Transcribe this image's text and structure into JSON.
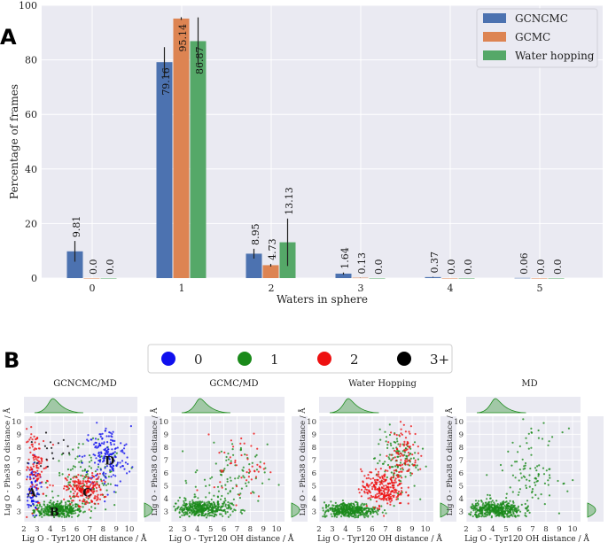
{
  "panel_a_label": "A",
  "panel_b_label": "B",
  "chart_data": [
    {
      "type": "bar",
      "xlabel": "Waters in sphere",
      "ylabel": "Percentage of frames",
      "ylim": [
        0,
        100
      ],
      "yticks": [
        0,
        20,
        40,
        60,
        80,
        100
      ],
      "categories": [
        "0",
        "1",
        "2",
        "3",
        "4",
        "5"
      ],
      "legend_position": "top-right",
      "grid": true,
      "series": [
        {
          "name": "GCNCMC",
          "color": "#4c72b0",
          "values": [
            9.81,
            79.16,
            8.95,
            1.64,
            0.37,
            0.06
          ],
          "labels": [
            "9.81",
            "79.16",
            "8.95",
            "1.64",
            "0.37",
            "0.06"
          ],
          "err": [
            3.8,
            5.5,
            1.8,
            0.4,
            0.1,
            0.0
          ]
        },
        {
          "name": "GCMC",
          "color": "#dd8452",
          "values": [
            0.0,
            95.14,
            4.73,
            0.13,
            0.0,
            0.0
          ],
          "labels": [
            "0.0",
            "95.14",
            "4.73",
            "0.13",
            "0.0",
            "0.0"
          ],
          "err": [
            0.0,
            0.5,
            0.5,
            0.05,
            0.0,
            0.0
          ]
        },
        {
          "name": "Water hopping",
          "color": "#55a868",
          "values": [
            0.0,
            86.87,
            13.13,
            0.0,
            0.0,
            0.0
          ],
          "labels": [
            "0.0",
            "86.87",
            "13.13",
            "0.0",
            "0.0",
            "0.0"
          ],
          "err": [
            0.0,
            8.7,
            8.7,
            0.0,
            0.0,
            0.0
          ]
        }
      ]
    },
    {
      "type": "scatter",
      "legend": [
        {
          "label": "0",
          "color": "#1010ee"
        },
        {
          "label": "1",
          "color": "#1a8a1a"
        },
        {
          "label": "2",
          "color": "#ee1111"
        },
        {
          "label": "3+",
          "color": "#000000"
        }
      ],
      "xlabel": "Lig O - Tyr120 OH distance / Å",
      "ylabel": "Lig O - Phe38 O distance / Å",
      "xticks": [
        "2",
        "3",
        "4",
        "5",
        "6",
        "7",
        "8",
        "9",
        "10"
      ],
      "yticks": [
        "3",
        "4",
        "5",
        "6",
        "7",
        "8",
        "9",
        "10"
      ],
      "xlim": [
        2,
        10.6
      ],
      "ylim": [
        2.2,
        10.4
      ],
      "panels": [
        {
          "title": "GCNCMC/MD",
          "regions": [
            {
              "label": "A",
              "x": 2.6,
              "y": 4.5
            },
            {
              "label": "B",
              "x": 4.3,
              "y": 3.0
            },
            {
              "label": "C",
              "x": 6.8,
              "y": 4.5
            },
            {
              "label": "D",
              "x": 8.5,
              "y": 7.0
            }
          ]
        },
        {
          "title": "GCMC/MD",
          "regions": []
        },
        {
          "title": "Water Hopping",
          "regions": []
        },
        {
          "title": "MD",
          "regions": []
        }
      ]
    }
  ]
}
